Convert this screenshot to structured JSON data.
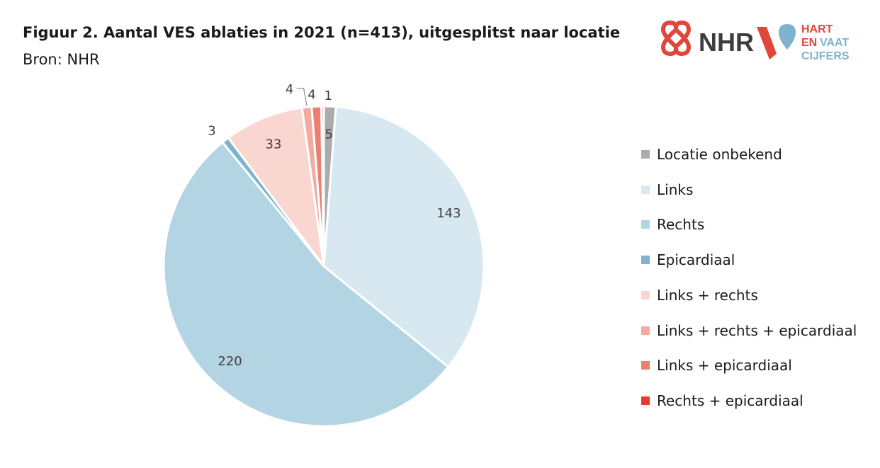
{
  "header": {
    "title": "Figuur 2. Aantal VES ablaties in 2021 (n=413), uitgesplitst naar locatie",
    "subtitle": "Bron: NHR"
  },
  "logo": {
    "nhr_text": "NHR",
    "hart_line1": "HART",
    "hart_line2_a": "EN",
    "hart_line2_b": "VAAT",
    "hart_line3": "CIJFERS",
    "colors": {
      "red": "#e0463a",
      "blue": "#7fb2cf",
      "grey": "#3d3d3d"
    }
  },
  "chart_data": {
    "type": "pie",
    "title": "Figuur 2. Aantal VES ablaties in 2021 (n=413), uitgesplitst naar locatie",
    "legend_position": "right",
    "slices": [
      {
        "label": "Locatie onbekend",
        "value": 5,
        "color": "#ababab"
      },
      {
        "label": "Links",
        "value": 143,
        "color": "#d8e8f1"
      },
      {
        "label": "Rechts",
        "value": 220,
        "color": "#b3d4e3"
      },
      {
        "label": "Epicardiaal",
        "value": 3,
        "color": "#7fb2cf"
      },
      {
        "label": "Links + rechts",
        "value": 33,
        "color": "#f9d6d0"
      },
      {
        "label": "Links + rechts + epicardiaal",
        "value": 4,
        "color": "#f3aba1"
      },
      {
        "label": "Links + epicardiaal",
        "value": 4,
        "color": "#ec7f70"
      },
      {
        "label": "Rechts + epicardiaal",
        "value": 1,
        "color": "#e53b2a"
      }
    ]
  }
}
